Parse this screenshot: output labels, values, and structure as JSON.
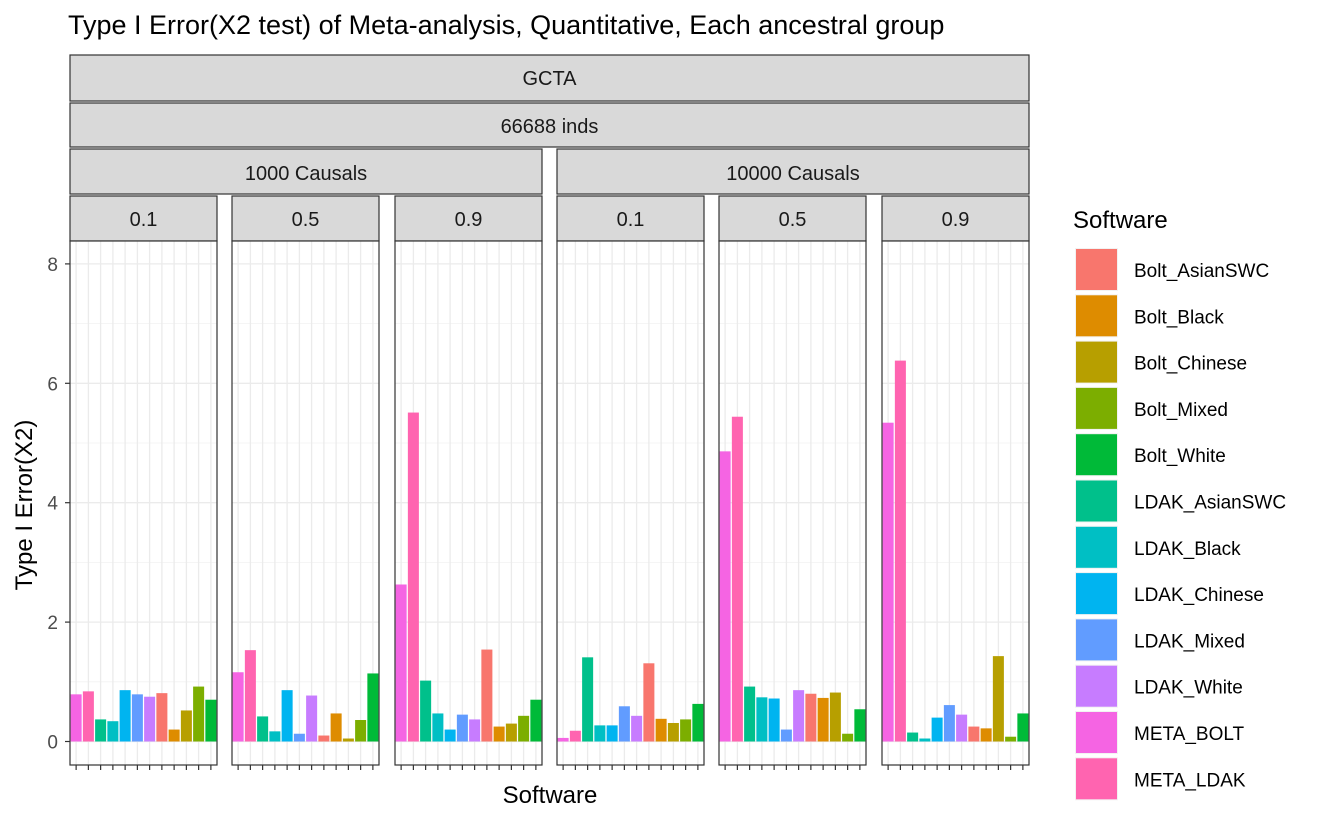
{
  "chart_data": {
    "type": "bar",
    "title": "Type I Error(X2 test) of Meta-analysis, Quantitative, Each ancestral group",
    "xlabel": "Software",
    "ylabel": "Type I Error(X2)",
    "ylim": [
      -0.3,
      8.4
    ],
    "yticks": [
      0,
      2,
      4,
      6,
      8
    ],
    "grid": true,
    "legend_position": "right",
    "legend_title": "Software",
    "strips": {
      "level1": "GCTA",
      "level2": "66688 inds",
      "groups": [
        {
          "label": "1000 Causals",
          "panels": [
            "0.1",
            "0.5",
            "0.9"
          ]
        },
        {
          "label": "10000 Causals",
          "panels": [
            "0.1",
            "0.5",
            "0.9"
          ]
        }
      ]
    },
    "series": [
      {
        "name": "Bolt_AsianSWC",
        "color": "#F8766D"
      },
      {
        "name": "Bolt_Black",
        "color": "#DE8C00"
      },
      {
        "name": "Bolt_Chinese",
        "color": "#B79F00"
      },
      {
        "name": "Bolt_Mixed",
        "color": "#7CAE00"
      },
      {
        "name": "Bolt_White",
        "color": "#00BA38"
      },
      {
        "name": "LDAK_AsianSWC",
        "color": "#00C08B"
      },
      {
        "name": "LDAK_Black",
        "color": "#00BFC4"
      },
      {
        "name": "LDAK_Chinese",
        "color": "#00B4F0"
      },
      {
        "name": "LDAK_Mixed",
        "color": "#619CFF"
      },
      {
        "name": "LDAK_White",
        "color": "#C77CFF"
      },
      {
        "name": "META_BOLT",
        "color": "#F564E3"
      },
      {
        "name": "META_LDAK",
        "color": "#FF64B0"
      }
    ],
    "bar_order": [
      "META_BOLT",
      "META_LDAK",
      "LDAK_AsianSWC",
      "LDAK_Black",
      "LDAK_Chinese",
      "LDAK_Mixed",
      "LDAK_White",
      "Bolt_AsianSWC",
      "Bolt_Black",
      "Bolt_Chinese",
      "Bolt_Mixed",
      "Bolt_White"
    ],
    "panels": [
      {
        "group": "1000 Causals",
        "label": "0.1",
        "values": {
          "META_BOLT": 0.79,
          "META_LDAK": 0.84,
          "LDAK_AsianSWC": 0.37,
          "LDAK_Black": 0.34,
          "LDAK_Chinese": 0.86,
          "LDAK_Mixed": 0.79,
          "LDAK_White": 0.75,
          "Bolt_AsianSWC": 0.81,
          "Bolt_Black": 0.2,
          "Bolt_Chinese": 0.52,
          "Bolt_Mixed": 0.92,
          "Bolt_White": 0.7
        }
      },
      {
        "group": "1000 Causals",
        "label": "0.5",
        "values": {
          "META_BOLT": 1.16,
          "META_LDAK": 1.53,
          "LDAK_AsianSWC": 0.42,
          "LDAK_Black": 0.17,
          "LDAK_Chinese": 0.86,
          "LDAK_Mixed": 0.13,
          "LDAK_White": 0.77,
          "Bolt_AsianSWC": 0.1,
          "Bolt_Black": 0.47,
          "Bolt_Chinese": 0.05,
          "Bolt_Mixed": 0.36,
          "Bolt_White": 1.14
        }
      },
      {
        "group": "1000 Causals",
        "label": "0.9",
        "values": {
          "META_BOLT": 2.63,
          "META_LDAK": 5.51,
          "LDAK_AsianSWC": 1.02,
          "LDAK_Black": 0.47,
          "LDAK_Chinese": 0.2,
          "LDAK_Mixed": 0.45,
          "LDAK_White": 0.37,
          "Bolt_AsianSWC": 1.54,
          "Bolt_Black": 0.25,
          "Bolt_Chinese": 0.3,
          "Bolt_Mixed": 0.43,
          "Bolt_White": 0.7
        }
      },
      {
        "group": "10000 Causals",
        "label": "0.1",
        "values": {
          "META_BOLT": 0.06,
          "META_LDAK": 0.18,
          "LDAK_AsianSWC": 1.41,
          "LDAK_Black": 0.27,
          "LDAK_Chinese": 0.27,
          "LDAK_Mixed": 0.59,
          "LDAK_White": 0.43,
          "Bolt_AsianSWC": 1.31,
          "Bolt_Black": 0.38,
          "Bolt_Chinese": 0.31,
          "Bolt_Mixed": 0.37,
          "Bolt_White": 0.63
        }
      },
      {
        "group": "10000 Causals",
        "label": "0.5",
        "values": {
          "META_BOLT": 4.86,
          "META_LDAK": 5.44,
          "LDAK_AsianSWC": 0.92,
          "LDAK_Black": 0.74,
          "LDAK_Chinese": 0.72,
          "LDAK_Mixed": 0.2,
          "LDAK_White": 0.86,
          "Bolt_AsianSWC": 0.8,
          "Bolt_Black": 0.73,
          "Bolt_Chinese": 0.82,
          "Bolt_Mixed": 0.13,
          "Bolt_White": 0.54
        }
      },
      {
        "group": "10000 Causals",
        "label": "0.9",
        "values": {
          "META_BOLT": 5.34,
          "META_LDAK": 6.38,
          "LDAK_AsianSWC": 0.15,
          "LDAK_Black": 0.05,
          "LDAK_Chinese": 0.4,
          "LDAK_Mixed": 0.61,
          "LDAK_White": 0.45,
          "Bolt_AsianSWC": 0.25,
          "Bolt_Black": 0.22,
          "Bolt_Chinese": 1.43,
          "Bolt_Mixed": 0.08,
          "Bolt_White": 0.47
        }
      }
    ]
  }
}
